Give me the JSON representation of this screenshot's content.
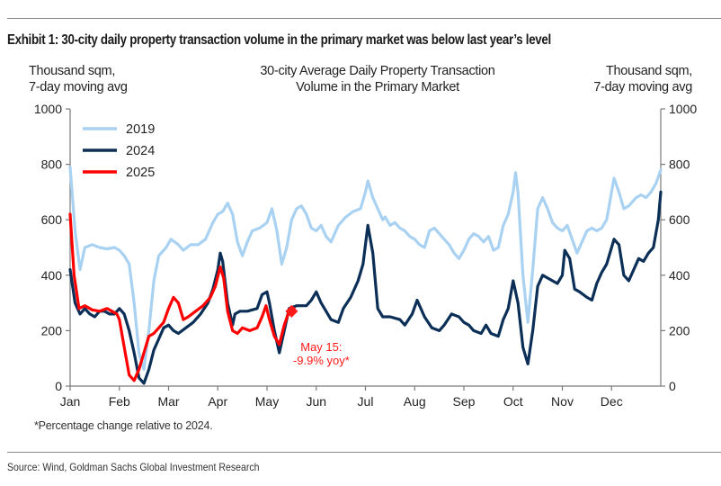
{
  "exhibit_title": "Exhibit 1: 30-city daily property transaction volume in the primary market was below last year’s level",
  "footnote": "*Percentage change relative to 2024.",
  "source": "Source: Wind, Goldman Sachs Global Investment Research",
  "chart_data": {
    "type": "line",
    "title": "30-city Average Daily Property Transaction Volume in the Primary Market",
    "title_lines": [
      "30-city Average Daily Property Transaction",
      "Volume in the Primary Market"
    ],
    "ylabel_left": [
      "Thousand sqm,",
      "7-day moving avg"
    ],
    "ylabel_right": [
      "Thousand sqm,",
      "7-day moving avg"
    ],
    "ylim": [
      0,
      1000
    ],
    "yticks": [
      0,
      200,
      400,
      600,
      800,
      1000
    ],
    "xlim": [
      0,
      12
    ],
    "x_unit": "months since Jan 1",
    "xticks": [
      0,
      1,
      2,
      3,
      4,
      5,
      6,
      7,
      8,
      9,
      10,
      11
    ],
    "xtick_labels": [
      "Jan",
      "Feb",
      "Mar",
      "Apr",
      "May",
      "Jun",
      "Jul",
      "Aug",
      "Sep",
      "Oct",
      "Nov",
      "Dec"
    ],
    "grid": false,
    "legend": {
      "position": "top-left",
      "entries": [
        "2019",
        "2024",
        "2025"
      ]
    },
    "series": [
      {
        "name": "2019",
        "color": "#a9d2f2",
        "points": [
          [
            0,
            790
          ],
          [
            0.1,
            560
          ],
          [
            0.2,
            420
          ],
          [
            0.3,
            500
          ],
          [
            0.45,
            510
          ],
          [
            0.6,
            500
          ],
          [
            0.75,
            495
          ],
          [
            0.9,
            500
          ],
          [
            1.0,
            490
          ],
          [
            1.1,
            470
          ],
          [
            1.2,
            440
          ],
          [
            1.3,
            300
          ],
          [
            1.4,
            120
          ],
          [
            1.5,
            60
          ],
          [
            1.6,
            200
          ],
          [
            1.7,
            380
          ],
          [
            1.8,
            470
          ],
          [
            1.95,
            500
          ],
          [
            2.05,
            530
          ],
          [
            2.2,
            510
          ],
          [
            2.3,
            490
          ],
          [
            2.45,
            510
          ],
          [
            2.6,
            510
          ],
          [
            2.75,
            530
          ],
          [
            2.9,
            590
          ],
          [
            3.0,
            620
          ],
          [
            3.1,
            630
          ],
          [
            3.2,
            660
          ],
          [
            3.3,
            620
          ],
          [
            3.4,
            520
          ],
          [
            3.5,
            470
          ],
          [
            3.6,
            520
          ],
          [
            3.7,
            560
          ],
          [
            3.85,
            570
          ],
          [
            4.0,
            590
          ],
          [
            4.1,
            640
          ],
          [
            4.2,
            560
          ],
          [
            4.3,
            440
          ],
          [
            4.4,
            500
          ],
          [
            4.5,
            600
          ],
          [
            4.6,
            640
          ],
          [
            4.7,
            650
          ],
          [
            4.8,
            620
          ],
          [
            4.9,
            570
          ],
          [
            5.0,
            560
          ],
          [
            5.1,
            580
          ],
          [
            5.2,
            540
          ],
          [
            5.3,
            520
          ],
          [
            5.45,
            580
          ],
          [
            5.6,
            610
          ],
          [
            5.75,
            630
          ],
          [
            5.9,
            640
          ],
          [
            6.0,
            700
          ],
          [
            6.05,
            740
          ],
          [
            6.15,
            680
          ],
          [
            6.25,
            640
          ],
          [
            6.35,
            600
          ],
          [
            6.4,
            610
          ],
          [
            6.5,
            580
          ],
          [
            6.6,
            590
          ],
          [
            6.7,
            570
          ],
          [
            6.8,
            560
          ],
          [
            6.9,
            540
          ],
          [
            7.0,
            530
          ],
          [
            7.1,
            510
          ],
          [
            7.2,
            500
          ],
          [
            7.3,
            560
          ],
          [
            7.4,
            570
          ],
          [
            7.5,
            550
          ],
          [
            7.6,
            530
          ],
          [
            7.7,
            510
          ],
          [
            7.8,
            480
          ],
          [
            7.9,
            460
          ],
          [
            8.0,
            490
          ],
          [
            8.1,
            530
          ],
          [
            8.2,
            550
          ],
          [
            8.3,
            540
          ],
          [
            8.4,
            520
          ],
          [
            8.5,
            540
          ],
          [
            8.6,
            490
          ],
          [
            8.7,
            500
          ],
          [
            8.8,
            580
          ],
          [
            8.9,
            620
          ],
          [
            9.0,
            700
          ],
          [
            9.05,
            770
          ],
          [
            9.1,
            700
          ],
          [
            9.2,
            400
          ],
          [
            9.3,
            230
          ],
          [
            9.4,
            420
          ],
          [
            9.5,
            640
          ],
          [
            9.6,
            680
          ],
          [
            9.7,
            640
          ],
          [
            9.8,
            590
          ],
          [
            9.9,
            570
          ],
          [
            10.0,
            560
          ],
          [
            10.1,
            580
          ],
          [
            10.2,
            530
          ],
          [
            10.3,
            480
          ],
          [
            10.4,
            520
          ],
          [
            10.5,
            560
          ],
          [
            10.6,
            570
          ],
          [
            10.7,
            560
          ],
          [
            10.8,
            570
          ],
          [
            10.9,
            600
          ],
          [
            11.0,
            700
          ],
          [
            11.05,
            750
          ],
          [
            11.15,
            700
          ],
          [
            11.25,
            640
          ],
          [
            11.35,
            650
          ],
          [
            11.5,
            680
          ],
          [
            11.6,
            690
          ],
          [
            11.7,
            680
          ],
          [
            11.8,
            700
          ],
          [
            11.9,
            730
          ],
          [
            12.0,
            780
          ]
        ]
      },
      {
        "name": "2024",
        "color": "#0c2f57",
        "points": [
          [
            0,
            420
          ],
          [
            0.1,
            300
          ],
          [
            0.2,
            260
          ],
          [
            0.3,
            280
          ],
          [
            0.4,
            260
          ],
          [
            0.5,
            250
          ],
          [
            0.6,
            270
          ],
          [
            0.7,
            270
          ],
          [
            0.8,
            260
          ],
          [
            0.9,
            260
          ],
          [
            1.0,
            280
          ],
          [
            1.1,
            260
          ],
          [
            1.2,
            200
          ],
          [
            1.3,
            120
          ],
          [
            1.4,
            30
          ],
          [
            1.5,
            10
          ],
          [
            1.6,
            60
          ],
          [
            1.7,
            130
          ],
          [
            1.8,
            170
          ],
          [
            1.9,
            210
          ],
          [
            2.0,
            220
          ],
          [
            2.1,
            200
          ],
          [
            2.2,
            190
          ],
          [
            2.35,
            210
          ],
          [
            2.5,
            230
          ],
          [
            2.65,
            260
          ],
          [
            2.8,
            300
          ],
          [
            2.9,
            350
          ],
          [
            3.0,
            420
          ],
          [
            3.05,
            480
          ],
          [
            3.1,
            450
          ],
          [
            3.2,
            300
          ],
          [
            3.3,
            220
          ],
          [
            3.35,
            260
          ],
          [
            3.45,
            270
          ],
          [
            3.6,
            270
          ],
          [
            3.8,
            280
          ],
          [
            3.9,
            330
          ],
          [
            4.0,
            340
          ],
          [
            4.05,
            300
          ],
          [
            4.15,
            200
          ],
          [
            4.25,
            120
          ],
          [
            4.35,
            200
          ],
          [
            4.45,
            280
          ],
          [
            4.6,
            290
          ],
          [
            4.8,
            290
          ],
          [
            4.9,
            310
          ],
          [
            5.0,
            340
          ],
          [
            5.1,
            300
          ],
          [
            5.2,
            270
          ],
          [
            5.3,
            240
          ],
          [
            5.45,
            230
          ],
          [
            5.55,
            280
          ],
          [
            5.7,
            320
          ],
          [
            5.85,
            380
          ],
          [
            5.95,
            440
          ],
          [
            6.05,
            580
          ],
          [
            6.15,
            480
          ],
          [
            6.25,
            280
          ],
          [
            6.35,
            250
          ],
          [
            6.5,
            250
          ],
          [
            6.7,
            240
          ],
          [
            6.8,
            220
          ],
          [
            6.95,
            260
          ],
          [
            7.05,
            310
          ],
          [
            7.2,
            250
          ],
          [
            7.35,
            210
          ],
          [
            7.5,
            200
          ],
          [
            7.6,
            220
          ],
          [
            7.75,
            260
          ],
          [
            7.9,
            250
          ],
          [
            8.0,
            230
          ],
          [
            8.1,
            220
          ],
          [
            8.2,
            200
          ],
          [
            8.35,
            190
          ],
          [
            8.45,
            220
          ],
          [
            8.55,
            190
          ],
          [
            8.7,
            180
          ],
          [
            8.8,
            240
          ],
          [
            8.9,
            280
          ],
          [
            9.0,
            380
          ],
          [
            9.1,
            300
          ],
          [
            9.2,
            140
          ],
          [
            9.3,
            80
          ],
          [
            9.4,
            200
          ],
          [
            9.5,
            360
          ],
          [
            9.6,
            400
          ],
          [
            9.7,
            390
          ],
          [
            9.8,
            380
          ],
          [
            9.9,
            370
          ],
          [
            10.0,
            400
          ],
          [
            10.05,
            490
          ],
          [
            10.15,
            460
          ],
          [
            10.25,
            350
          ],
          [
            10.35,
            340
          ],
          [
            10.5,
            320
          ],
          [
            10.6,
            310
          ],
          [
            10.7,
            370
          ],
          [
            10.8,
            410
          ],
          [
            10.9,
            440
          ],
          [
            11.0,
            500
          ],
          [
            11.05,
            530
          ],
          [
            11.15,
            510
          ],
          [
            11.25,
            400
          ],
          [
            11.35,
            380
          ],
          [
            11.45,
            420
          ],
          [
            11.55,
            460
          ],
          [
            11.65,
            450
          ],
          [
            11.75,
            480
          ],
          [
            11.85,
            500
          ],
          [
            11.95,
            600
          ],
          [
            12.0,
            700
          ]
        ]
      },
      {
        "name": "2025",
        "color": "#ff0000",
        "points": [
          [
            0,
            620
          ],
          [
            0.08,
            400
          ],
          [
            0.18,
            280
          ],
          [
            0.3,
            290
          ],
          [
            0.45,
            275
          ],
          [
            0.6,
            270
          ],
          [
            0.75,
            280
          ],
          [
            0.85,
            270
          ],
          [
            0.95,
            260
          ],
          [
            1.0,
            240
          ],
          [
            1.1,
            140
          ],
          [
            1.2,
            40
          ],
          [
            1.3,
            20
          ],
          [
            1.4,
            60
          ],
          [
            1.5,
            120
          ],
          [
            1.6,
            180
          ],
          [
            1.7,
            190
          ],
          [
            1.8,
            210
          ],
          [
            1.9,
            230
          ],
          [
            2.0,
            280
          ],
          [
            2.1,
            320
          ],
          [
            2.2,
            300
          ],
          [
            2.3,
            240
          ],
          [
            2.4,
            250
          ],
          [
            2.55,
            270
          ],
          [
            2.7,
            290
          ],
          [
            2.85,
            320
          ],
          [
            2.95,
            360
          ],
          [
            3.05,
            430
          ],
          [
            3.12,
            390
          ],
          [
            3.2,
            270
          ],
          [
            3.3,
            200
          ],
          [
            3.4,
            190
          ],
          [
            3.5,
            210
          ],
          [
            3.65,
            200
          ],
          [
            3.8,
            210
          ],
          [
            3.9,
            250
          ],
          [
            3.98,
            290
          ],
          [
            4.05,
            240
          ],
          [
            4.15,
            180
          ],
          [
            4.25,
            150
          ],
          [
            4.35,
            220
          ],
          [
            4.45,
            270
          ],
          [
            4.55,
            280
          ]
        ]
      }
    ],
    "annotations": [
      {
        "text_lines": [
          "May 15:",
          "-9.9% yoy*"
        ],
        "x": 4.5,
        "y": 270,
        "color": "#ff1a1a",
        "marker": "diamond"
      }
    ]
  }
}
